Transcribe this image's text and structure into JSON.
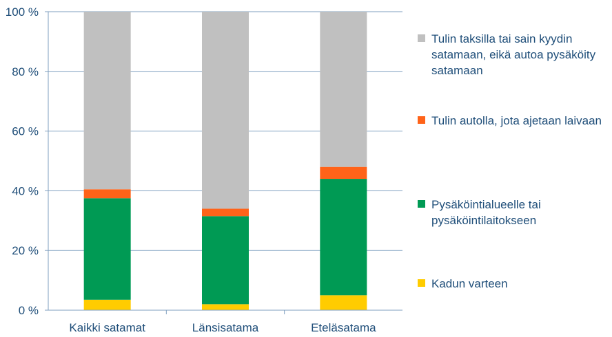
{
  "chart_data": {
    "type": "bar",
    "stacked": true,
    "categories": [
      "Kaikki satamat",
      "Länsisatama",
      "Eteläsatama"
    ],
    "series": [
      {
        "name": "Kadun varteen",
        "color": "#FFCC00",
        "values": [
          3.5,
          2.0,
          5.0
        ]
      },
      {
        "name": "Pysäköintialueelle tai pysäköintilaitokseen",
        "color": "#009A54",
        "values": [
          34.0,
          29.5,
          39.0
        ]
      },
      {
        "name": "Tulin autolla, jota ajetaan laivaan",
        "color": "#FF6319",
        "values": [
          3.0,
          2.5,
          4.0
        ]
      },
      {
        "name": "Tulin taksilla tai sain kyydin satamaan, eikä autoa pysäköity satamaan",
        "color": "#C0C0C0",
        "values": [
          59.5,
          66.0,
          52.0
        ]
      }
    ],
    "y_ticks": [
      "0 %",
      "20 %",
      "40 %",
      "60 %",
      "80 %",
      "100 %"
    ],
    "ylim": [
      0,
      100
    ],
    "grid": true,
    "legend_position": "right",
    "title": "",
    "xlabel": "",
    "ylabel": ""
  }
}
